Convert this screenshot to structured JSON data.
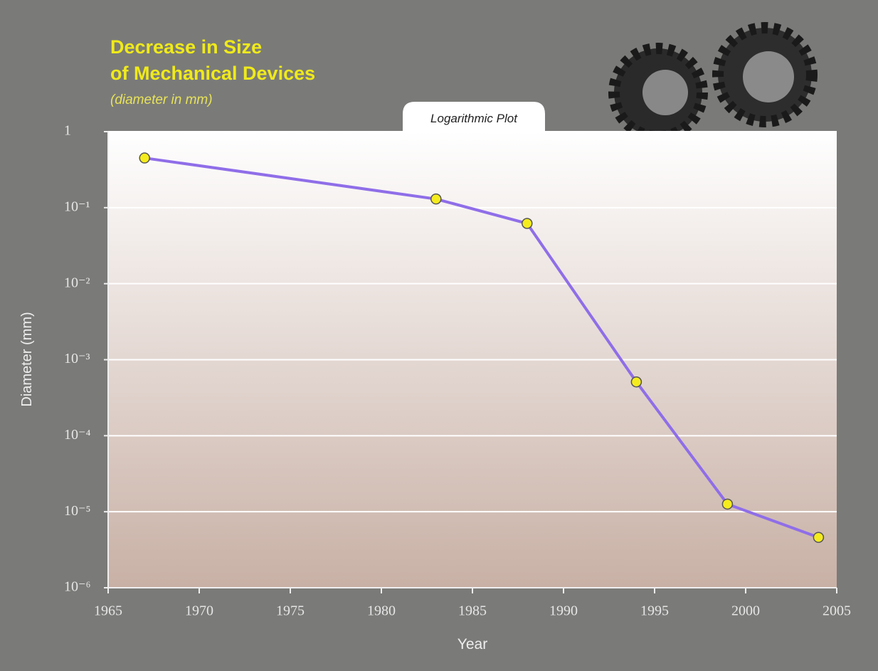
{
  "chart_data": {
    "type": "line",
    "title_lines": [
      "Decrease in Size",
      "of Mechanical Devices"
    ],
    "subtitle": "(diameter in mm)",
    "annotation": "Logarithmic Plot",
    "x_label": "Year",
    "y_label": "Diameter (mm)",
    "x": [
      1967,
      1983,
      1988,
      1994,
      1999,
      2004
    ],
    "series": [
      {
        "color": "#8f6ee8",
        "marker_color": "#f5ec1e",
        "values": [
          0.45,
          0.13,
          0.062,
          0.00051,
          1.26e-05,
          4.6e-06
        ]
      }
    ],
    "xlim": [
      1965,
      2005
    ],
    "xticks": [
      1965,
      1970,
      1975,
      1980,
      1985,
      1990,
      1995,
      2000,
      2005
    ],
    "ylim": [
      1e-06,
      1
    ],
    "y_log_scale": true,
    "yticks": [
      {
        "value": 1,
        "label": "1"
      },
      {
        "value": 0.1,
        "label": "10⁻¹"
      },
      {
        "value": 0.01,
        "label": "10⁻²"
      },
      {
        "value": 0.001,
        "label": "10⁻³"
      },
      {
        "value": 0.0001,
        "label": "10⁻⁴"
      },
      {
        "value": 1e-05,
        "label": "10⁻⁵"
      },
      {
        "value": 1e-06,
        "label": "10⁻⁶"
      }
    ],
    "grid": true
  }
}
